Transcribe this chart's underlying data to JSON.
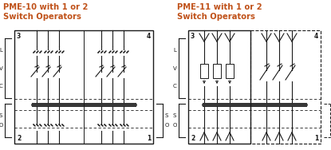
{
  "title1": "PME-10 with 1 or 2",
  "subtitle1": "Switch Operators",
  "title2": "PME-11 with 1 or 2",
  "subtitle2": "Switch Operators",
  "title_color": "#c0521a",
  "line_color": "#1a1a1a",
  "bg_color": "#ffffff",
  "fig_width": 4.15,
  "fig_height": 1.88,
  "dpi": 100
}
